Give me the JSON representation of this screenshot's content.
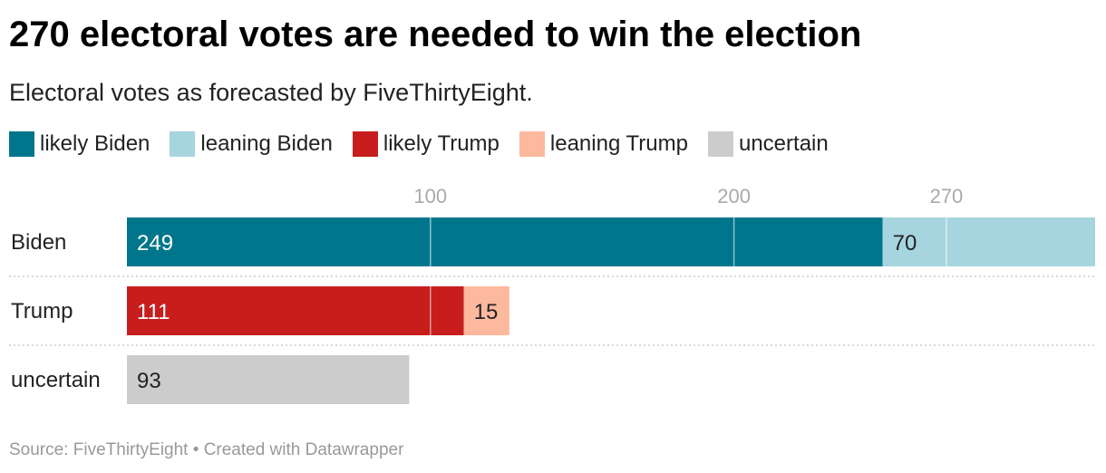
{
  "title": "270 electoral votes are needed to win the election",
  "subtitle": "Electoral votes as forecasted by FiveThirtyEight.",
  "legend": [
    {
      "label": "likely Biden",
      "color": "#00768c"
    },
    {
      "label": "leaning Biden",
      "color": "#a6d5df"
    },
    {
      "label": "likely Trump",
      "color": "#c71e1d"
    },
    {
      "label": "leaning Trump",
      "color": "#fcb99e"
    },
    {
      "label": "uncertain",
      "color": "#cccccc"
    }
  ],
  "footer": {
    "source": "Source: FiveThirtyEight",
    "separator": "•",
    "credit": "Created with Datawrapper"
  },
  "chart_data": {
    "type": "bar",
    "orientation": "horizontal",
    "stacked": true,
    "categories": [
      "Biden",
      "Trump",
      "uncertain"
    ],
    "series": [
      {
        "name": "likely Biden",
        "color": "#00768c",
        "label_color": "#ffffff",
        "values": [
          249,
          0,
          0
        ]
      },
      {
        "name": "leaning Biden",
        "color": "#a6d5df",
        "label_color": "#222222",
        "values": [
          70,
          0,
          0
        ]
      },
      {
        "name": "likely Trump",
        "color": "#c71e1d",
        "label_color": "#ffffff",
        "values": [
          0,
          111,
          0
        ]
      },
      {
        "name": "leaning Trump",
        "color": "#fcb99e",
        "label_color": "#222222",
        "values": [
          0,
          15,
          0
        ]
      },
      {
        "name": "uncertain",
        "color": "#cccccc",
        "label_color": "#222222",
        "values": [
          0,
          0,
          93
        ]
      }
    ],
    "xlim": [
      0,
      319
    ],
    "gridlines": [
      {
        "value": 100,
        "label": "100"
      },
      {
        "value": 200,
        "label": "200"
      },
      {
        "value": 270,
        "label": "270"
      }
    ],
    "xlabel": "",
    "ylabel": ""
  }
}
